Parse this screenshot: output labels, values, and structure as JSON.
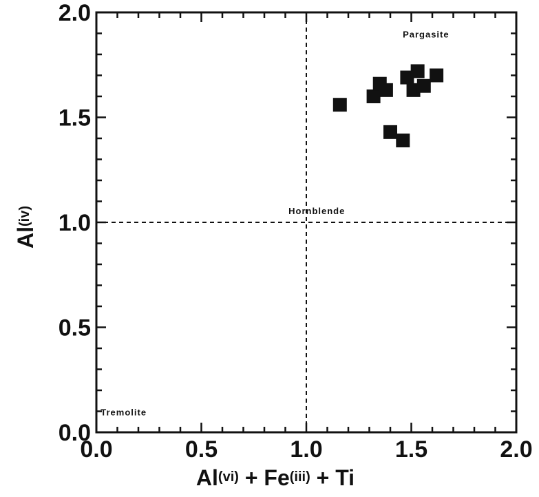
{
  "chart_data": {
    "type": "scatter",
    "title": "",
    "xlabel": {
      "parts": [
        "Al",
        "(vi)",
        " + Fe",
        "(iii)",
        " + Ti"
      ]
    },
    "ylabel": {
      "parts": [
        "Al",
        "(iv)"
      ]
    },
    "xlim": [
      0.0,
      2.0
    ],
    "ylim": [
      0.0,
      2.0
    ],
    "xticks": [
      "0.0",
      "0.5",
      "1.0",
      "1.5",
      "2.0"
    ],
    "yticks": [
      "0.0",
      "0.5",
      "1.0",
      "1.5",
      "2.0"
    ],
    "grid": false,
    "reference_lines": [
      {
        "orientation": "vertical",
        "x": 1.0,
        "style": "dashed"
      },
      {
        "orientation": "horizontal",
        "y": 1.0,
        "style": "dashed"
      }
    ],
    "region_labels": [
      {
        "text": "Pargasite",
        "x": 1.57,
        "y": 1.88
      },
      {
        "text": "Hornblende",
        "x": 1.05,
        "y": 1.04
      },
      {
        "text": "Tremolite",
        "x": 0.13,
        "y": 0.08
      }
    ],
    "marker": {
      "shape": "square",
      "color": "#111111"
    },
    "points": [
      {
        "x": 1.16,
        "y": 1.56
      },
      {
        "x": 1.32,
        "y": 1.6
      },
      {
        "x": 1.35,
        "y": 1.66
      },
      {
        "x": 1.38,
        "y": 1.63
      },
      {
        "x": 1.4,
        "y": 1.43
      },
      {
        "x": 1.46,
        "y": 1.39
      },
      {
        "x": 1.48,
        "y": 1.69
      },
      {
        "x": 1.51,
        "y": 1.63
      },
      {
        "x": 1.53,
        "y": 1.72
      },
      {
        "x": 1.56,
        "y": 1.65
      },
      {
        "x": 1.62,
        "y": 1.7
      }
    ]
  }
}
